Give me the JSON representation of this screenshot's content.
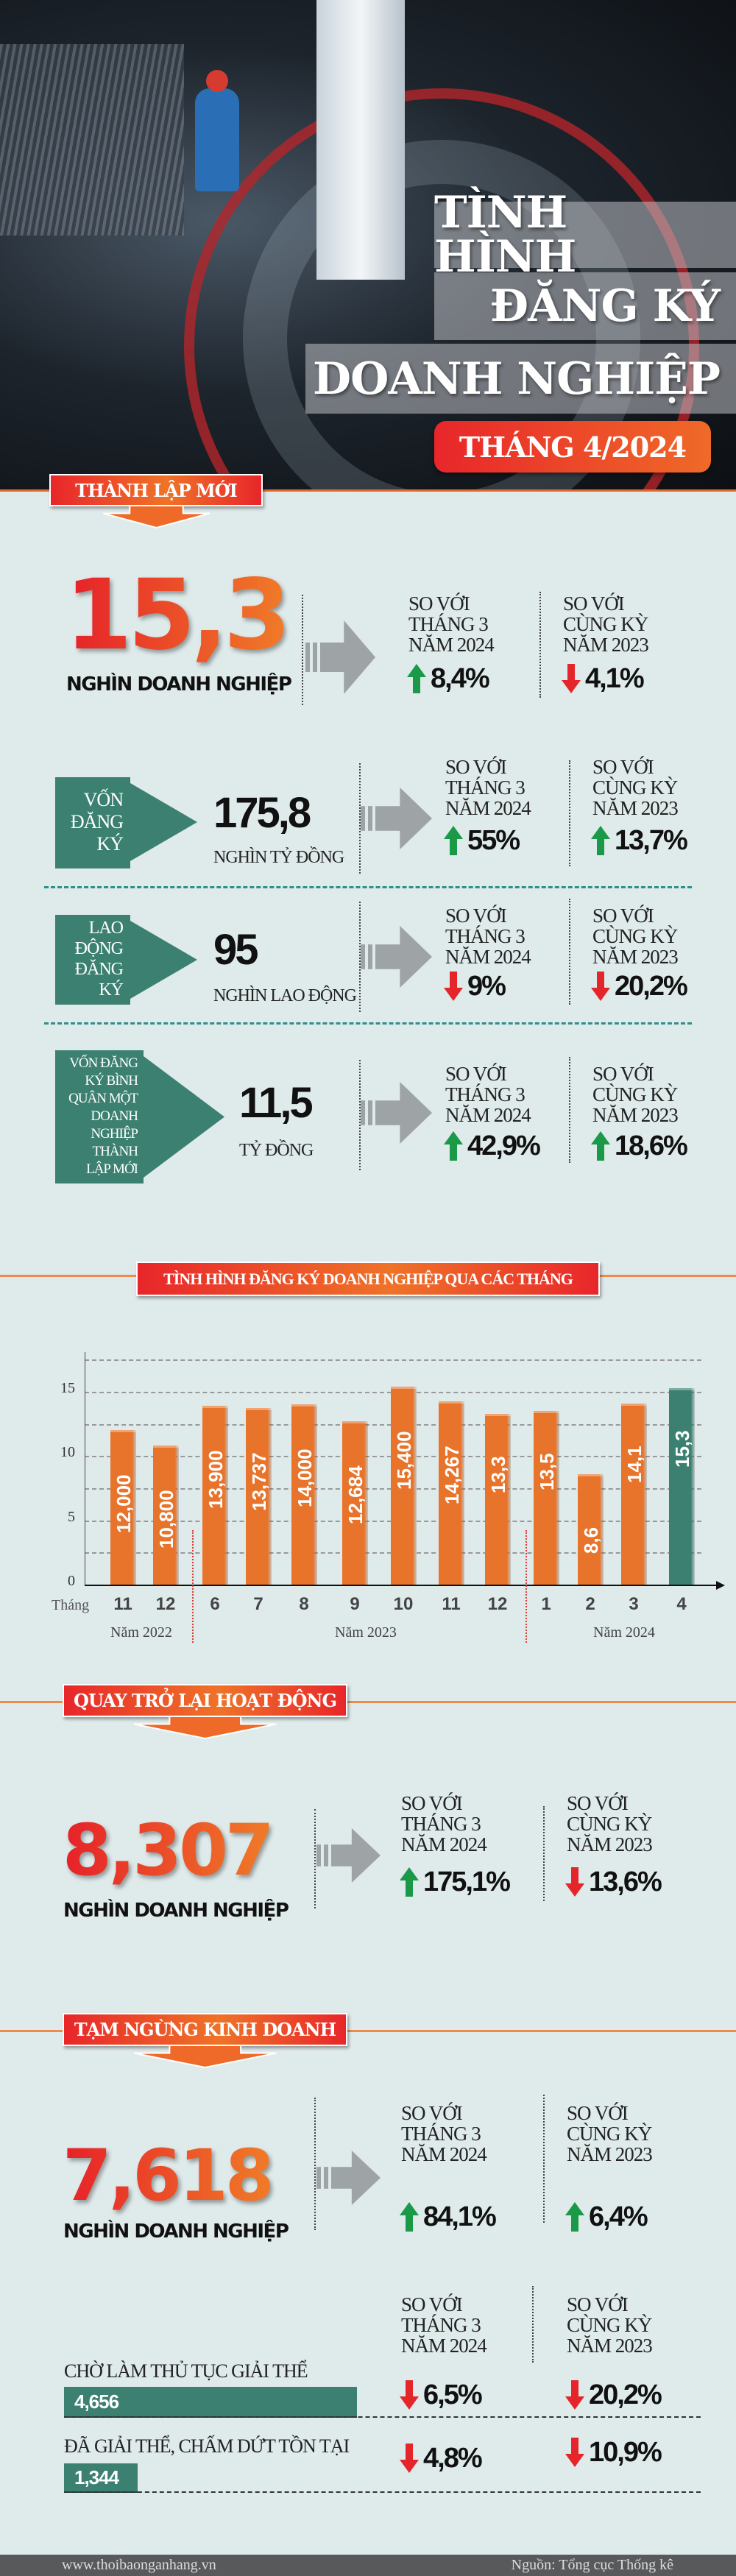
{
  "header": {
    "title_lines": [
      "TÌNH HÌNH",
      "ĐĂNG KÝ",
      "DOANH NGHIỆP"
    ],
    "month": "THÁNG 4/2024"
  },
  "compare_labels": {
    "vs_prev_month": [
      "SO VỚI",
      "THÁNG 3",
      "NĂM 2024"
    ],
    "vs_same_period": [
      "SO VỚI",
      "CÙNG KỲ",
      "NĂM 2023"
    ]
  },
  "new_established": {
    "banner": "THÀNH LẬP MỚI",
    "value": "15,3",
    "unit": "NGHÌN DOANH NGHIỆP",
    "vs_prev_month": {
      "direction": "up",
      "value": "8,4%"
    },
    "vs_same_period": {
      "direction": "down",
      "value": "4,1%"
    }
  },
  "metrics": [
    {
      "label_lines": [
        "VỐN",
        "ĐĂNG",
        "KÝ"
      ],
      "value": "175,8",
      "unit": "NGHÌN TỶ ĐỒNG",
      "vs_prev_month": {
        "direction": "up",
        "value": "55%"
      },
      "vs_same_period": {
        "direction": "up",
        "value": "13,7%"
      }
    },
    {
      "label_lines": [
        "LAO",
        "ĐỘNG",
        "ĐĂNG",
        "KÝ"
      ],
      "value": "95",
      "unit": "NGHÌN LAO ĐỘNG",
      "vs_prev_month": {
        "direction": "down",
        "value": "9%"
      },
      "vs_same_period": {
        "direction": "down",
        "value": "20,2%"
      }
    },
    {
      "label_lines": [
        "VỐN ĐĂNG",
        "KÝ BÌNH",
        "QUÂN MỘT",
        "DOANH",
        "NGHIỆP",
        "THÀNH",
        "LẬP MỚI"
      ],
      "value": "11,5",
      "unit": "TỶ ĐỒNG",
      "vs_prev_month": {
        "direction": "up",
        "value": "42,9%"
      },
      "vs_same_period": {
        "direction": "up",
        "value": "18,6%"
      }
    }
  ],
  "chart_data": {
    "type": "bar",
    "title": "TÌNH HÌNH ĐĂNG KÝ DOANH NGHIỆP QUA CÁC THÁNG",
    "xlabel": "Tháng",
    "ylabel": "",
    "ylim": [
      0,
      17.5
    ],
    "yticks": [
      0,
      5,
      10,
      15
    ],
    "grid": true,
    "categories": [
      "11",
      "12",
      "6",
      "7",
      "8",
      "9",
      "10",
      "11",
      "12",
      "1",
      "2",
      "3",
      "4"
    ],
    "values": [
      12.0,
      10.8,
      13.9,
      13.737,
      14.0,
      12.684,
      15.4,
      14.267,
      13.3,
      13.5,
      8.6,
      14.1,
      15.3
    ],
    "data_labels": [
      "12,000",
      "10,800",
      "13,900",
      "13,737",
      "14,000",
      "12,684",
      "15,400",
      "14,267",
      "13,3",
      "13,5",
      "8,6",
      "14,1",
      "15,3"
    ],
    "groups": [
      {
        "label": "Năm 2022",
        "count": 2
      },
      {
        "label": "Năm 2023",
        "count": 7
      },
      {
        "label": "Năm 2024",
        "count": 4
      }
    ],
    "colors": {
      "default": "#e8732a",
      "highlight": "#3b8070"
    },
    "highlight_index": 12
  },
  "returning": {
    "banner": "QUAY TRỞ LẠI HOẠT ĐỘNG",
    "value": "8,307",
    "unit": "NGHÌN DOANH NGHIỆP",
    "vs_prev_month": {
      "direction": "up",
      "value": "175,1%"
    },
    "vs_same_period": {
      "direction": "down",
      "value": "13,6%"
    }
  },
  "suspended": {
    "banner": "TẠM NGỪNG KINH DOANH",
    "value": "7,618",
    "unit": "NGHÌN DOANH NGHIỆP",
    "vs_prev_month": {
      "direction": "up",
      "value": "84,1%"
    },
    "vs_same_period": {
      "direction": "up",
      "value": "6,4%"
    }
  },
  "dissolution": [
    {
      "label": "CHỜ LÀM THỦ TỤC GIẢI THỂ",
      "value": "4,656",
      "amount": 4656,
      "vs_prev_month": {
        "direction": "down",
        "value": "6,5%"
      },
      "vs_same_period": {
        "direction": "down",
        "value": "20,2%"
      }
    },
    {
      "label": "ĐÃ GIẢI THỂ, CHẤM DỨT TỒN TẠI",
      "value": "1,344",
      "amount": 1344,
      "vs_prev_month": {
        "direction": "down",
        "value": "4,8%"
      },
      "vs_same_period": {
        "direction": "down",
        "value": "10,9%"
      }
    }
  ],
  "colors": {
    "up": "#1a9a48",
    "down": "#e4262b",
    "accent": "#ef6a28",
    "teal": "#3b8070"
  },
  "footer": {
    "website": "www.thoibaonganhang.vn",
    "source": "Nguồn: Tổng cục Thống kê"
  }
}
